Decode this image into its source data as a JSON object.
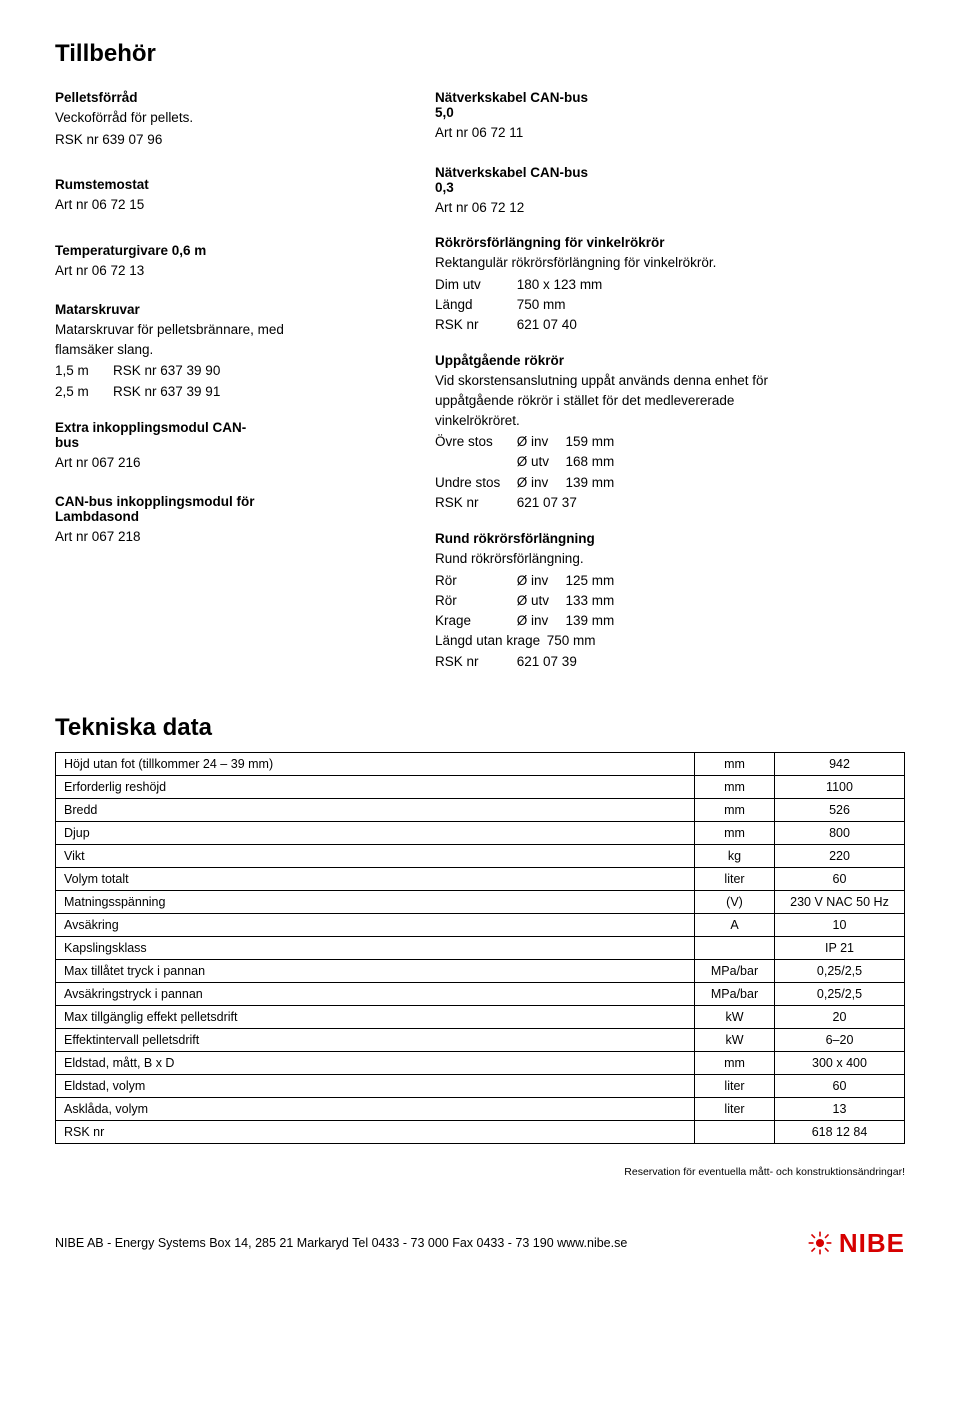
{
  "title": "Tillbehör",
  "left": {
    "pelletsforrad": {
      "title": "Pelletsförråd",
      "desc": "Veckoförråd för pellets.",
      "art": "RSK nr 639 07 96"
    },
    "rumstemostat": {
      "title": "Rumstemostat",
      "art": "Art nr 06 72 15"
    },
    "tempgivare": {
      "title": "Temperaturgivare 0,6 m",
      "art": "Art nr 06 72 13"
    },
    "matarskruvar": {
      "title": "Matarskruvar",
      "desc": "Matarskruvar för pelletsbrännare, med flamsäker slang.",
      "r1_len": "1,5 m",
      "r1_val": "RSK nr  637 39 90",
      "r2_len": "2,5 m",
      "r2_val": "RSK nr  637 39 91"
    },
    "extra_modul": {
      "title": "Extra inkopplingsmodul CAN-bus",
      "art": "Art nr 067 216"
    },
    "lambda_modul": {
      "title": "CAN-bus inkopplingsmodul för Lambdasond",
      "art": "Art nr 067 218"
    }
  },
  "right": {
    "nk50": {
      "title": "Nätverkskabel CAN-bus 5,0",
      "art": "Art nr 06 72 11"
    },
    "nk03": {
      "title": "Nätverkskabel CAN-bus 0,3",
      "art": "Art nr 06 72 12"
    },
    "rokforl": {
      "title": "Rökrörsförlängning för vinkelrökrör",
      "desc": "Rektangulär rökrörsförlängning för vinkelrökrör.",
      "dim_label": "Dim utv",
      "dim_val": "180 x 123 mm",
      "len_label": "Längd",
      "len_val": "750 mm",
      "rsk_label": "RSK nr",
      "rsk_val": "621 07 40"
    },
    "uppga": {
      "title": "Uppåtgående rökrör",
      "desc": "Vid skorstensanslutning uppåt används denna enhet för uppåtgående rökrör i stället för det medlevererade vinkelrökröret.",
      "ovre_label": "Övre stos",
      "ovre_sub1": "Ø inv",
      "ovre_v1": "159 mm",
      "ovre_sub2": "Ø utv",
      "ovre_v2": "168 mm",
      "undre_label": "Undre stos",
      "undre_sub": "Ø inv",
      "undre_v": "139 mm",
      "rsk_label": "RSK nr",
      "rsk_val": "621 07 37"
    },
    "rund": {
      "title": "Rund rökrörsförlängning",
      "desc": "Rund rökrörsförlängning.",
      "ror_label": "Rör",
      "ror_sub1": "Ø inv",
      "ror_v1": "125 mm",
      "ror_sub2": "Ø utv",
      "ror_v2": "133 mm",
      "krage_label": "Krage",
      "krage_sub": "Ø inv",
      "krage_v": "139 mm",
      "langd_label": "Längd utan krage",
      "langd_v": "750 mm",
      "rsk_label": "RSK nr",
      "rsk_val": "621 07 39"
    }
  },
  "tech_title": "Tekniska data",
  "tech_rows": [
    {
      "name": "Höjd utan fot (tillkommer 24 – 39 mm)",
      "unit": "mm",
      "val": "942"
    },
    {
      "name": "Erforderlig reshöjd",
      "unit": "mm",
      "val": "1100"
    },
    {
      "name": "Bredd",
      "unit": "mm",
      "val": "526"
    },
    {
      "name": "Djup",
      "unit": "mm",
      "val": "800"
    },
    {
      "name": "Vikt",
      "unit": "kg",
      "val": "220"
    },
    {
      "name": "Volym totalt",
      "unit": "liter",
      "val": "60"
    },
    {
      "name": "Matningsspänning",
      "unit": "(V)",
      "val": "230 V NAC 50 Hz"
    },
    {
      "name": "Avsäkring",
      "unit": "A",
      "val": "10"
    },
    {
      "name": "Kapslingsklass",
      "unit": "",
      "val": "IP 21"
    },
    {
      "name": "Max tillåtet tryck i pannan",
      "unit": "MPa/bar",
      "val": "0,25/2,5"
    },
    {
      "name": "Avsäkringstryck i pannan",
      "unit": "MPa/bar",
      "val": "0,25/2,5"
    },
    {
      "name": "Max tillgänglig effekt pelletsdrift",
      "unit": "kW",
      "val": "20"
    },
    {
      "name": "Effektintervall pelletsdrift",
      "unit": "kW",
      "val": "6–20"
    },
    {
      "name": "Eldstad, mått, B x D",
      "unit": "mm",
      "val": "300 x 400"
    },
    {
      "name": "Eldstad, volym",
      "unit": "liter",
      "val": "60"
    },
    {
      "name": "Asklåda, volym",
      "unit": "liter",
      "val": "13"
    },
    {
      "name": "RSK nr",
      "unit": "",
      "val": "618 12 84"
    }
  ],
  "reservation": "Reservation för eventuella mått- och konstruktionsändringar!",
  "footer_addr": "NIBE AB - Energy Systems  Box 14, 285 21 Markaryd  Tel 0433 - 73 000  Fax 0433 - 73 190  www.nibe.se",
  "logo_text": "NIBE",
  "colors": {
    "logo": "#d60000",
    "border": "#000000",
    "text": "#000000",
    "bg": "#ffffff"
  }
}
